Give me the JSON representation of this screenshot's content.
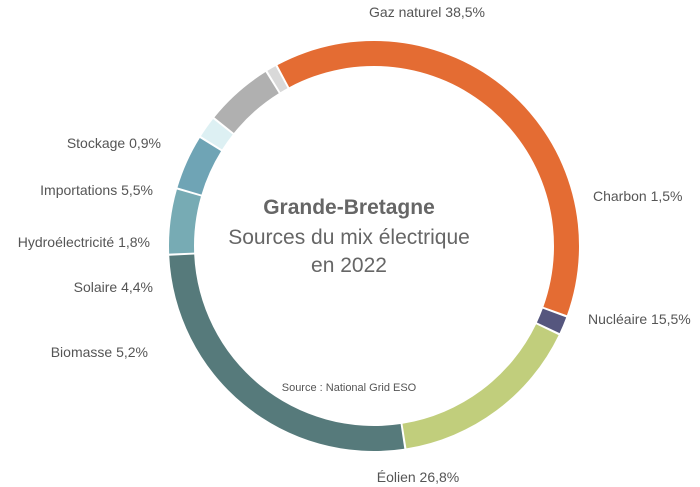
{
  "chart_data": {
    "type": "pie",
    "title": "Grande-Bretagne",
    "subtitle_line1": "Sources du mix électrique",
    "subtitle_line2": "en 2022",
    "source": "Source : National Grid ESO",
    "slices": [
      {
        "name": "Gaz naturel",
        "value": 38.5,
        "label": "Gaz naturel 38,5%",
        "color": "#E46C33"
      },
      {
        "name": "Charbon",
        "value": 1.5,
        "label": "Charbon 1,5%",
        "color": "#55567E"
      },
      {
        "name": "Nucléaire",
        "value": 15.5,
        "label": "Nucléaire 15,5%",
        "color": "#C1CE7C"
      },
      {
        "name": "Éolien",
        "value": 26.8,
        "label": "Éolien 26,8%",
        "color": "#567A7B"
      },
      {
        "name": "Biomasse",
        "value": 5.2,
        "label": "Biomasse 5,2%",
        "color": "#77ABB4"
      },
      {
        "name": "Solaire",
        "value": 4.4,
        "label": "Solaire 4,4%",
        "color": "#6FA4B5"
      },
      {
        "name": "Hydroélectricité",
        "value": 1.8,
        "label": "Hydroélectricité 1,8%",
        "color": "#DDF0F3"
      },
      {
        "name": "Importations",
        "value": 5.5,
        "label": "Importations 5,5%",
        "color": "#B0B0B0"
      },
      {
        "name": "Stockage",
        "value": 0.9,
        "label": "Stockage 0,9%",
        "color": "#D9D9D9"
      }
    ]
  }
}
